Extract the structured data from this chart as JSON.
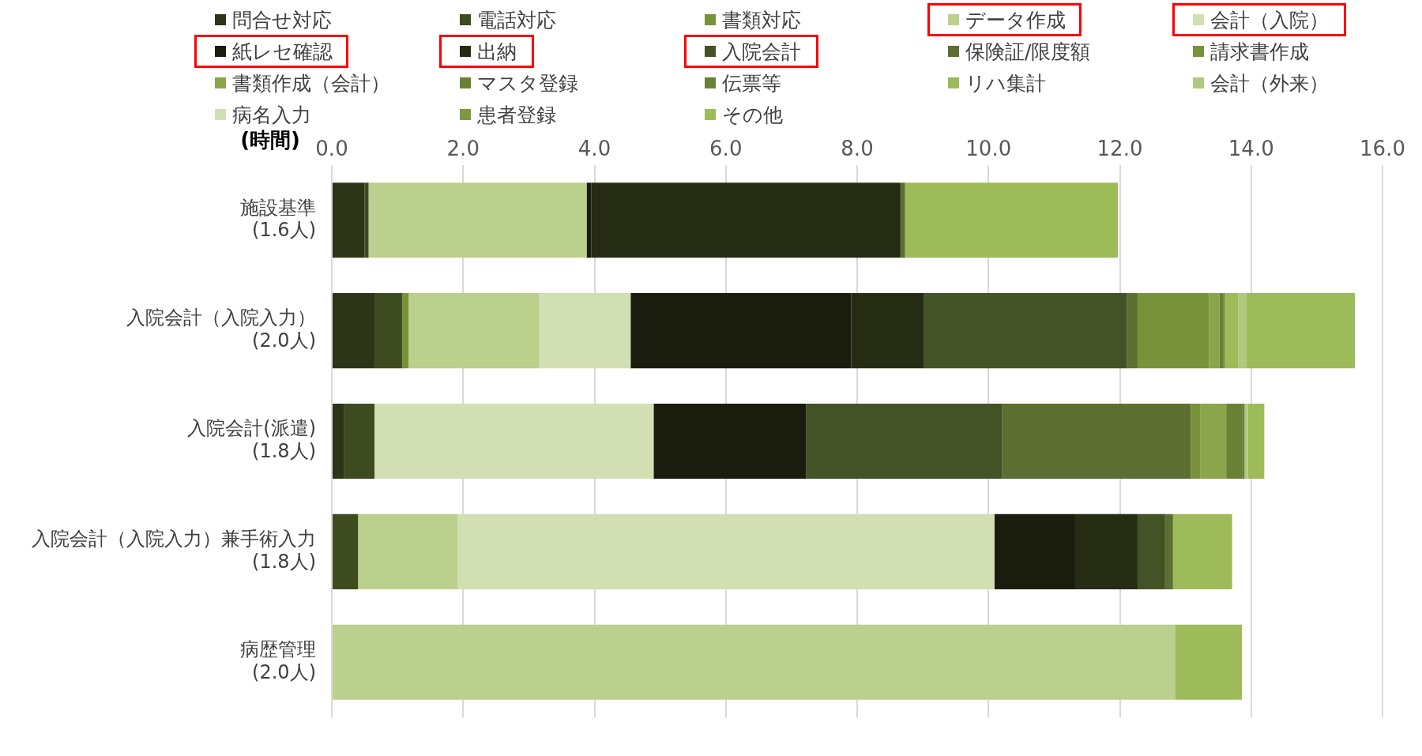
{
  "chart_data": {
    "type": "bar",
    "orientation": "horizontal",
    "stacked": true,
    "xlabel": "(時間)",
    "categories": [
      "施設基準\n(1.6人)",
      "入院会計（入院入力）\n(2.0人)",
      "入院会計(派遣)\n(1.8人)",
      "入院会計（入院入力）兼手術入力\n(1.8人)",
      "病歴管理\n(2.0人)"
    ],
    "xlim": [
      0,
      16
    ],
    "xticks": [
      {
        "value": 0,
        "label": "0.0"
      },
      {
        "value": 2,
        "label": "2.0"
      },
      {
        "value": 4,
        "label": "4.0"
      },
      {
        "value": 6,
        "label": "6.0"
      },
      {
        "value": 8,
        "label": "8.0"
      },
      {
        "value": 10,
        "label": "10.0"
      },
      {
        "value": 12,
        "label": "12.0"
      },
      {
        "value": 14,
        "label": "14.0"
      },
      {
        "value": 16,
        "label": "16.0"
      }
    ],
    "grid": "x",
    "legend": "top",
    "series": [
      {
        "name": "問合せ対応",
        "color": "#2c3518",
        "values": [
          0.5,
          0.66,
          0.19,
          null,
          null
        ]
      },
      {
        "name": "電話対応",
        "color": "#3d4b1e",
        "values": [
          0.06,
          0.41,
          0.46,
          0.4,
          null
        ]
      },
      {
        "name": "書類対応",
        "color": "#78923a",
        "values": [
          null,
          0.1,
          null,
          null,
          null
        ]
      },
      {
        "name": "データ作成",
        "color": "#bbd08c",
        "values": [
          3.32,
          1.99,
          null,
          1.52,
          12.84
        ]
      },
      {
        "name": "会計（入院）",
        "color": "#d2dfb3",
        "values": [
          null,
          1.39,
          4.25,
          8.17,
          null
        ]
      },
      {
        "name": "紙レセ確認",
        "color": "#1a1d0e",
        "values": [
          0.07,
          3.36,
          2.32,
          1.23,
          null
        ]
      },
      {
        "name": "出納",
        "color": "#262c14",
        "values": [
          4.71,
          1.11,
          null,
          0.95,
          null
        ]
      },
      {
        "name": "入院会計",
        "color": "#435325",
        "values": [
          null,
          3.09,
          2.99,
          0.42,
          null
        ]
      },
      {
        "name": "保険証/限度額",
        "color": "#5c6f30",
        "values": [
          0.07,
          0.16,
          2.87,
          0.12,
          null
        ]
      },
      {
        "name": "請求書作成",
        "color": "#78923a",
        "values": [
          null,
          1.09,
          0.15,
          null,
          null
        ]
      },
      {
        "name": "書類作成（会計）",
        "color": "#8ba54a",
        "values": [
          null,
          0.16,
          0.39,
          null,
          null
        ]
      },
      {
        "name": "マスタ登録",
        "color": "#6a8135",
        "values": [
          null,
          0.06,
          0.24,
          null,
          null
        ]
      },
      {
        "name": "伝票等",
        "color": "#6a8135",
        "values": [
          null,
          0.02,
          0.04,
          null,
          null
        ]
      },
      {
        "name": "リハ集計",
        "color": "#9dbb59",
        "values": [
          null,
          0.2,
          null,
          null,
          null
        ]
      },
      {
        "name": "会計（外来）",
        "color": "#b0c97e",
        "values": [
          null,
          0.13,
          0.05,
          null,
          null
        ]
      },
      {
        "name": "病名入力",
        "color": "#d2dfb3",
        "values": [
          null,
          null,
          null,
          null,
          null
        ]
      },
      {
        "name": "患者登録",
        "color": "#7f9a3e",
        "values": [
          null,
          null,
          null,
          null,
          null
        ]
      },
      {
        "name": "その他",
        "color": "#9dbb59",
        "values": [
          3.24,
          1.65,
          0.25,
          0.9,
          1.02
        ]
      }
    ]
  }
}
